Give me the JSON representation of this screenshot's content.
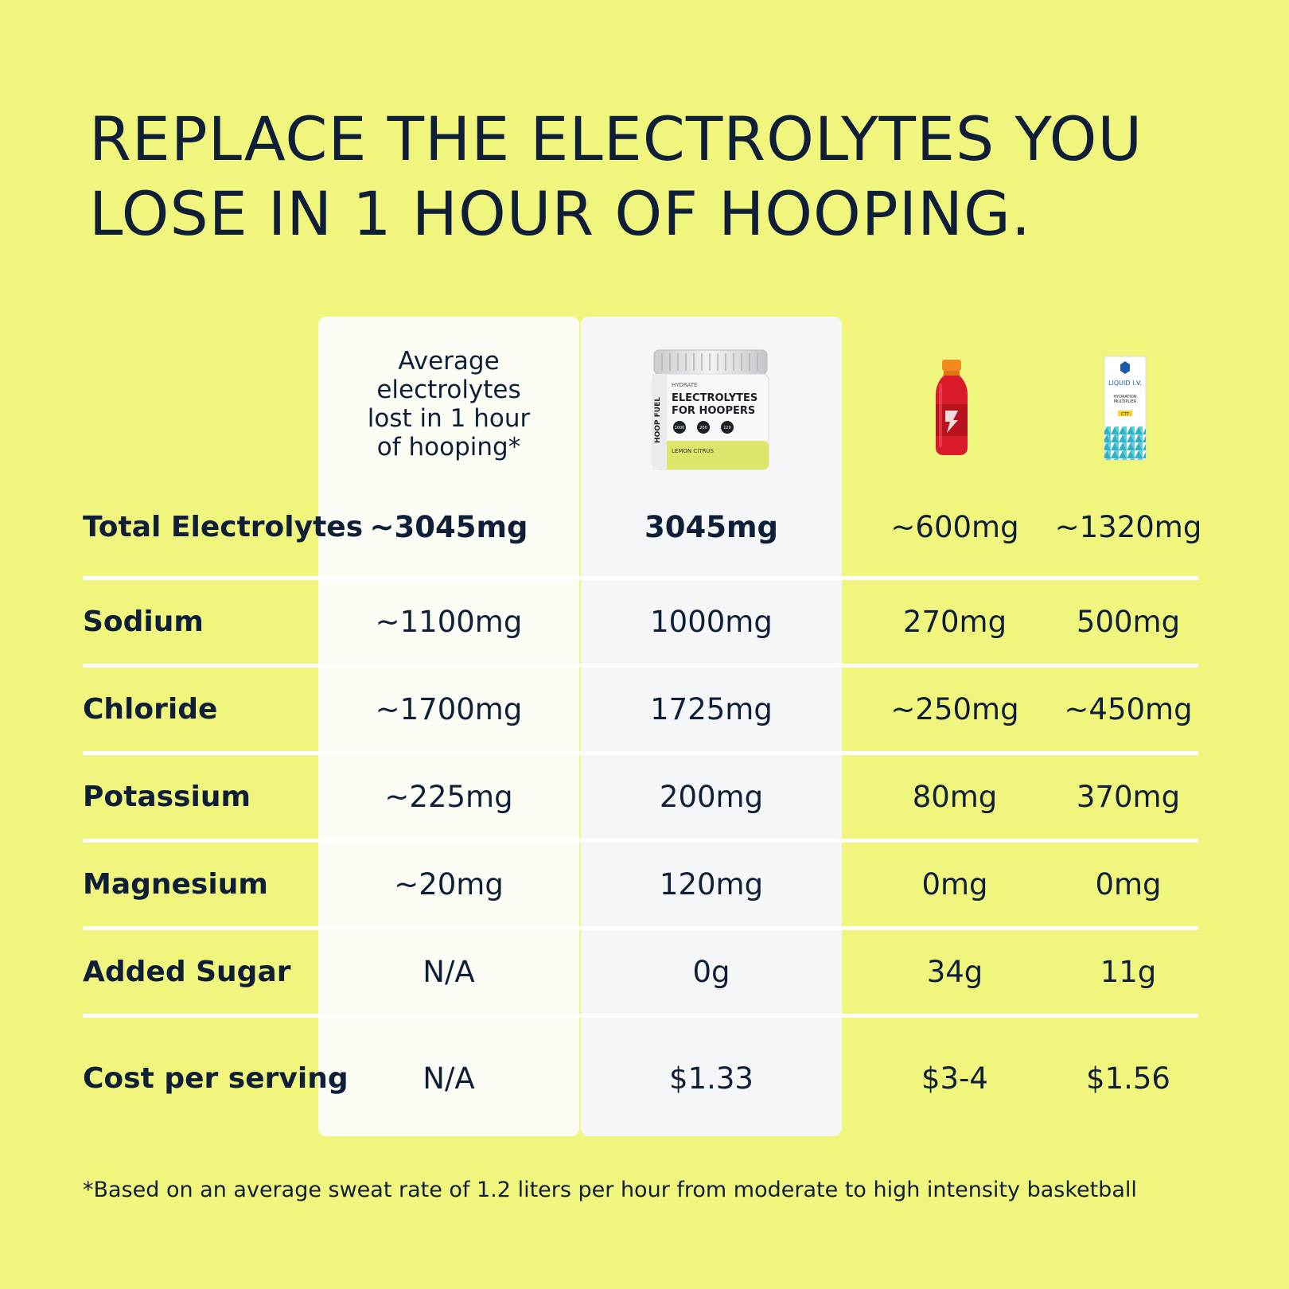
{
  "headline": {
    "line1": "REPLACE THE ELECTROLYTES YOU",
    "line2": "LOSE IN 1 HOUR OF HOOPING."
  },
  "columns": {
    "average_header": [
      "Average",
      "electrolytes",
      "lost in 1 hour",
      "of hooping*"
    ]
  },
  "products": {
    "hoopfuel": {
      "icon": "electrolytes-tub-icon",
      "brand_tag": "HYDRATE",
      "name_line1": "ELECTROLYTES",
      "name_line2": "FOR HOOPERS",
      "side_text": "HOOP FUEL",
      "badge1": "1000",
      "badge2": "200",
      "badge3": "120",
      "flavor": "LEMON CITRUS"
    },
    "gatorade": {
      "icon": "sports-drink-bottle-icon"
    },
    "liquidiv": {
      "icon": "liquid-iv-packet-icon",
      "brand": "LIQUID I.V.",
      "line1": "HYDRATION",
      "line2": "MULTIPLIER",
      "badge": "CTT"
    }
  },
  "rows": [
    {
      "label": "Total Electrolytes",
      "avg": "~3045mg",
      "hoopfuel": "3045mg",
      "gatorade": "~600mg",
      "liquidiv": "~1320mg"
    },
    {
      "label": "Sodium",
      "avg": "~1100mg",
      "hoopfuel": "1000mg",
      "gatorade": "270mg",
      "liquidiv": "500mg"
    },
    {
      "label": "Chloride",
      "avg": "~1700mg",
      "hoopfuel": "1725mg",
      "gatorade": "~250mg",
      "liquidiv": "~450mg"
    },
    {
      "label": "Potassium",
      "avg": "~225mg",
      "hoopfuel": "200mg",
      "gatorade": "80mg",
      "liquidiv": "370mg"
    },
    {
      "label": "Magnesium",
      "avg": "~20mg",
      "hoopfuel": "120mg",
      "gatorade": "0mg",
      "liquidiv": "0mg"
    },
    {
      "label": "Added Sugar",
      "avg": "N/A",
      "hoopfuel": "0g",
      "gatorade": "34g",
      "liquidiv": "11g"
    },
    {
      "label": "Cost per serving",
      "avg": "N/A",
      "hoopfuel": "$1.33",
      "gatorade": "$3-4",
      "liquidiv": "$1.56"
    }
  ],
  "footnote": "*Based on an average sweat rate of 1.2 liters per hour from moderate to high intensity basketball",
  "colors": {
    "background": "#f0f57e",
    "text": "#0f1f38",
    "avg_column": "#fbfdf5",
    "hoopfuel_column": "#f4f6f8",
    "divider": "#ffffff"
  }
}
